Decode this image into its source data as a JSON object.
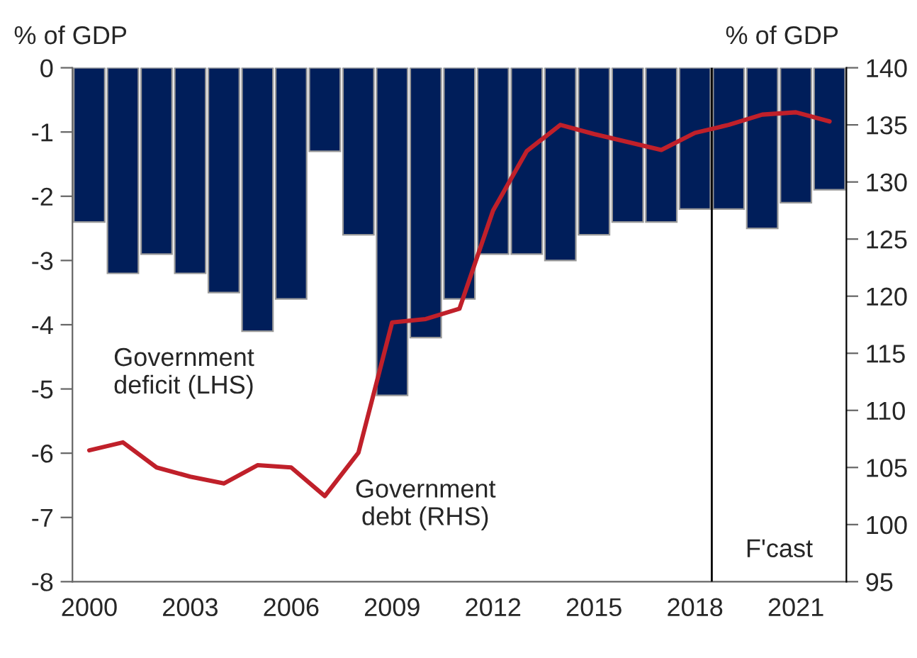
{
  "chart_data": {
    "type": "bar",
    "ylabel": "% of GDP",
    "y2label": "% of GDP",
    "x": [
      2000,
      2001,
      2002,
      2003,
      2004,
      2005,
      2006,
      2007,
      2008,
      2009,
      2010,
      2011,
      2012,
      2013,
      2014,
      2015,
      2016,
      2017,
      2018,
      2019,
      2020,
      2021,
      2022
    ],
    "xlim": [
      1999.5,
      2022.5
    ],
    "xticks": [
      2000,
      2003,
      2006,
      2009,
      2012,
      2015,
      2018,
      2021
    ],
    "ylim": [
      -8,
      0
    ],
    "yticks": [
      -8,
      -7,
      -6,
      -5,
      -4,
      -3,
      -2,
      -1,
      0
    ],
    "y2lim": [
      95,
      140
    ],
    "y2ticks": [
      95,
      100,
      105,
      110,
      115,
      120,
      125,
      130,
      135,
      140
    ],
    "series": [
      {
        "name": "Government\ndeficit (LHS)",
        "color": "#001e5a",
        "values": [
          -2.4,
          -3.2,
          -2.9,
          -3.2,
          -3.5,
          -4.1,
          -3.6,
          -1.3,
          -2.6,
          -5.1,
          -4.2,
          -3.6,
          -2.9,
          -2.9,
          -3.0,
          -2.6,
          -2.4,
          -2.4,
          -2.2,
          -2.2,
          -2.5,
          -2.1,
          -1.9
        ]
      },
      {
        "name": "Government\ndebt (RHS)",
        "type": "line",
        "axis": "y2",
        "color": "#c0202a",
        "values": [
          106.5,
          107.2,
          105.0,
          104.2,
          103.6,
          105.2,
          105.0,
          102.5,
          106.3,
          117.7,
          118.0,
          118.9,
          127.5,
          132.7,
          135.0,
          134.2,
          133.5,
          132.8,
          134.3,
          135.0,
          135.9,
          136.1,
          135.3
        ]
      }
    ],
    "ref_lines": [
      {
        "axis": "x",
        "value": 2018.5,
        "label": "F'cast",
        "color": "#000000",
        "line_style": "solid"
      }
    ],
    "grid": false,
    "legend": false
  }
}
